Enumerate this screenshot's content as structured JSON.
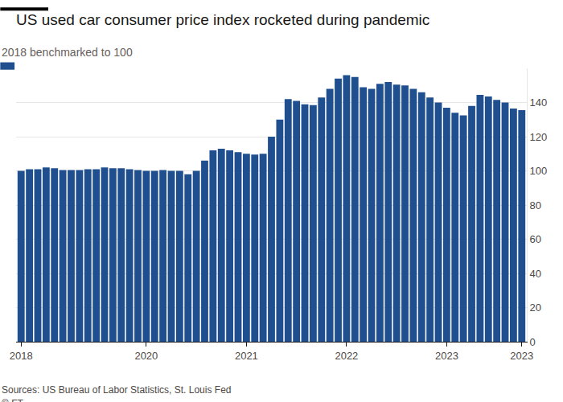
{
  "chart_data": {
    "type": "bar",
    "title": "US used car consumer price index rocketed during pandemic",
    "subtitle": "2018 benchmarked to 100",
    "annotations": [
      "Sources: US Bureau of Labor Statistics, St. Louis Fed",
      "© FT"
    ],
    "categories": [
      "2018",
      null,
      null,
      null,
      null,
      null,
      null,
      null,
      null,
      null,
      null,
      null,
      null,
      null,
      null,
      "2020",
      null,
      null,
      null,
      null,
      null,
      null,
      null,
      null,
      null,
      null,
      null,
      "2021",
      null,
      null,
      null,
      null,
      null,
      null,
      null,
      null,
      null,
      null,
      null,
      "2022",
      null,
      null,
      null,
      null,
      null,
      null,
      null,
      null,
      null,
      null,
      null,
      "2023",
      null,
      null,
      null,
      null,
      null,
      null,
      null,
      null,
      "2023"
    ],
    "values": [
      100,
      101,
      101,
      102,
      101.5,
      100.5,
      100.5,
      100.5,
      101,
      101,
      102,
      101.5,
      101.5,
      101,
      100.5,
      100,
      100,
      100.5,
      100,
      100,
      98,
      100,
      106,
      112,
      113,
      112,
      111,
      110,
      109.5,
      110,
      120,
      130,
      142,
      141,
      139,
      138.5,
      143,
      148,
      154,
      156,
      155,
      149,
      148,
      151,
      152,
      150.5,
      150,
      148,
      146,
      143,
      140,
      137,
      134,
      132.5,
      138,
      144.5,
      143.5,
      141.5,
      140,
      136.5,
      135.5
    ],
    "color": "#1f4f8f",
    "ylim": [
      0,
      160
    ],
    "yticks": [
      0,
      20,
      40,
      60,
      80,
      100,
      120,
      140
    ],
    "grid": true
  }
}
